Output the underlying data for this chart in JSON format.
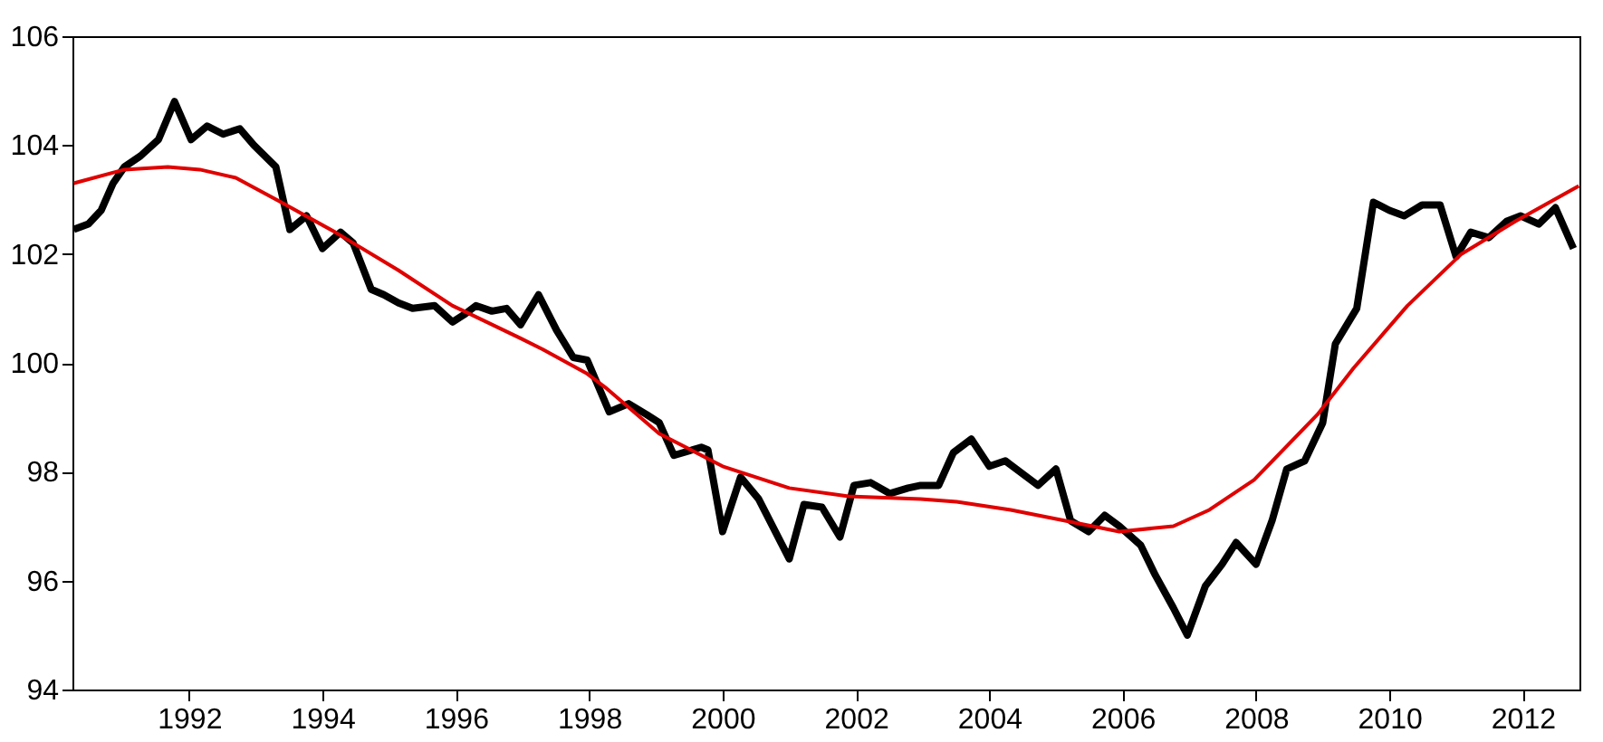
{
  "chart_data": {
    "type": "line",
    "xlim": [
      1990.25,
      2012.85
    ],
    "ylim": [
      94,
      106
    ],
    "xticks": [
      1992,
      1994,
      1996,
      1998,
      2000,
      2002,
      2004,
      2006,
      2008,
      2010,
      2012
    ],
    "yticks": [
      94,
      96,
      98,
      100,
      102,
      104,
      106
    ],
    "grid": false,
    "legend": false,
    "marker": "none",
    "line_style": "solid",
    "series": [
      {
        "color": "#000000",
        "x": [
          1990.27,
          1990.49,
          1990.68,
          1990.86,
          1991.03,
          1991.27,
          1991.54,
          1991.78,
          1992.03,
          1992.27,
          1992.51,
          1992.76,
          1992.97,
          1993.3,
          1993.51,
          1993.76,
          1994.0,
          1994.27,
          1994.46,
          1994.73,
          1994.92,
          1995.14,
          1995.35,
          1995.68,
          1995.95,
          1996.14,
          1996.3,
          1996.54,
          1996.76,
          1996.97,
          1997.24,
          1997.51,
          1997.76,
          1997.97,
          1998.3,
          1998.59,
          1998.86,
          1999.05,
          1999.27,
          1999.68,
          1999.78,
          2000.0,
          2000.27,
          2000.54,
          2001.0,
          2001.22,
          2001.49,
          2001.76,
          2001.97,
          2002.22,
          2002.51,
          2002.78,
          2002.97,
          2003.24,
          2003.46,
          2003.73,
          2004.0,
          2004.24,
          2004.73,
          2005.0,
          2005.22,
          2005.49,
          2005.73,
          2005.95,
          2006.27,
          2006.49,
          2006.76,
          2006.97,
          2007.24,
          2007.49,
          2007.7,
          2008.0,
          2008.24,
          2008.46,
          2008.73,
          2009.0,
          2009.19,
          2009.51,
          2009.76,
          2010.0,
          2010.22,
          2010.49,
          2010.76,
          2011.0,
          2011.22,
          2011.49,
          2011.76,
          2011.97,
          2012.24,
          2012.49,
          2012.76
        ],
        "values": [
          102.45,
          102.55,
          102.8,
          103.3,
          103.6,
          103.8,
          104.1,
          104.8,
          104.1,
          104.35,
          104.2,
          104.3,
          104.0,
          103.6,
          102.45,
          102.7,
          102.1,
          102.4,
          102.2,
          101.35,
          101.25,
          101.1,
          101.0,
          101.05,
          100.75,
          100.9,
          101.05,
          100.95,
          101.0,
          100.7,
          101.25,
          100.6,
          100.1,
          100.05,
          99.1,
          99.25,
          99.05,
          98.9,
          98.3,
          98.45,
          98.4,
          96.9,
          97.9,
          97.5,
          96.4,
          97.4,
          97.35,
          96.8,
          97.75,
          97.8,
          97.6,
          97.7,
          97.75,
          97.75,
          98.35,
          98.6,
          98.1,
          98.2,
          97.75,
          98.05,
          97.1,
          96.9,
          97.2,
          97.0,
          96.65,
          96.1,
          95.5,
          95.0,
          95.9,
          96.3,
          96.7,
          96.3,
          97.1,
          98.05,
          98.2,
          98.9,
          100.35,
          101.0,
          102.95,
          102.8,
          102.7,
          102.9,
          102.9,
          101.95,
          102.4,
          102.3,
          102.6,
          102.7,
          102.55,
          102.85,
          102.1
        ]
      },
      {
        "color": "#e00000",
        "x": [
          1990.27,
          1991.03,
          1991.68,
          1992.16,
          1992.7,
          1993.38,
          1994.19,
          1995.14,
          1995.95,
          1996.97,
          1997.3,
          1997.97,
          1998.24,
          1999.05,
          2000.0,
          2001.0,
          2001.89,
          2002.97,
          2003.51,
          2004.32,
          2005.14,
          2005.95,
          2006.76,
          2007.3,
          2007.97,
          2008.92,
          2009.46,
          2010.27,
          2011.08,
          2011.89,
          2012.84
        ],
        "values": [
          103.3,
          103.55,
          103.6,
          103.55,
          103.4,
          102.95,
          102.4,
          101.7,
          101.05,
          100.45,
          100.25,
          99.8,
          99.55,
          98.7,
          98.1,
          97.7,
          97.55,
          97.5,
          97.45,
          97.3,
          97.1,
          96.9,
          97.0,
          97.3,
          97.85,
          99.05,
          99.9,
          101.05,
          102.0,
          102.6,
          103.25
        ]
      }
    ]
  }
}
